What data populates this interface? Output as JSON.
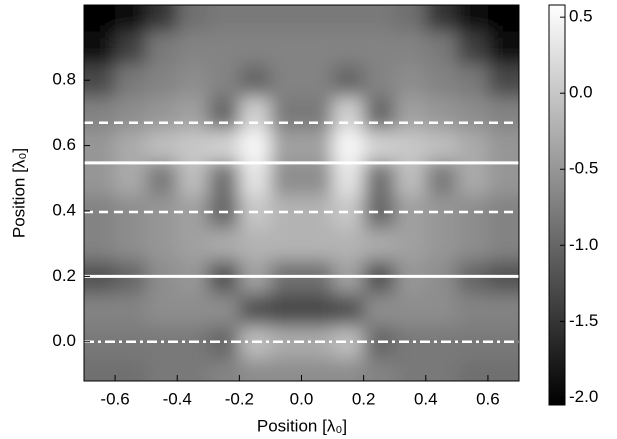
{
  "chart_data": {
    "type": "heatmap",
    "xlabel": "Position [λ₀]",
    "ylabel": "Position [λ₀]",
    "xlim": [
      -0.7,
      0.7
    ],
    "ylim": [
      -0.12,
      1.03
    ],
    "xticks": [
      -0.6,
      -0.4,
      -0.2,
      {
        "value": 0,
        "label": "0.0"
      },
      0.2,
      0.4,
      0.6
    ],
    "yticks": [
      {
        "value": 0,
        "label": "0.0"
      },
      0.2,
      0.4,
      0.6,
      0.8
    ],
    "clim": [
      -2.05,
      0.58
    ],
    "cticks": [
      0.5,
      {
        "value": 0,
        "label": "0.0"
      },
      -0.5,
      {
        "value": -1,
        "label": "-1.0"
      },
      -1.5,
      {
        "value": -2,
        "label": "-2.0"
      }
    ],
    "x": [
      -0.65,
      -0.55,
      -0.45,
      -0.35,
      -0.25,
      -0.15,
      -0.05,
      0.05,
      0.15,
      0.25,
      0.35,
      0.45,
      0.55,
      0.65
    ],
    "y": [
      -0.1,
      0.0,
      0.1,
      0.2,
      0.3,
      0.4,
      0.5,
      0.6,
      0.7,
      0.8,
      0.9,
      1.0
    ],
    "z": [
      [
        -0.9,
        -0.9,
        -0.8,
        -0.8,
        -0.7,
        -0.6,
        -0.6,
        -0.6,
        -0.6,
        -0.7,
        -0.8,
        -0.8,
        -0.9,
        -0.9
      ],
      [
        -0.8,
        -0.8,
        -0.8,
        -0.8,
        -1.0,
        -0.1,
        -0.3,
        -0.3,
        -0.1,
        -1.0,
        -0.8,
        -0.8,
        -0.8,
        -0.8
      ],
      [
        -0.7,
        -0.7,
        -0.6,
        -0.6,
        -0.6,
        -1.2,
        -1.3,
        -1.3,
        -1.2,
        -0.6,
        -0.6,
        -0.6,
        -0.7,
        -0.7
      ],
      [
        -1.2,
        -1.0,
        -0.6,
        -0.5,
        -1.2,
        -0.4,
        -0.9,
        -0.9,
        -0.4,
        -1.2,
        -0.5,
        -0.6,
        -1.0,
        -1.2
      ],
      [
        -0.7,
        -0.6,
        -0.5,
        -0.4,
        -0.3,
        -0.2,
        -0.2,
        -0.2,
        -0.2,
        -0.3,
        -0.4,
        -0.5,
        -0.6,
        -0.7
      ],
      [
        -0.7,
        -0.6,
        -0.5,
        -0.4,
        -1.0,
        0.0,
        -0.2,
        -0.2,
        0.0,
        -1.0,
        -0.4,
        -0.5,
        -0.6,
        -0.7
      ],
      [
        -0.5,
        -0.3,
        -0.8,
        -0.1,
        -0.9,
        0.3,
        -0.6,
        -0.6,
        0.3,
        -0.9,
        -0.1,
        -0.8,
        -0.3,
        -0.5
      ],
      [
        -0.5,
        -0.3,
        -0.1,
        0.0,
        0.1,
        0.5,
        -0.4,
        -0.4,
        0.5,
        0.1,
        0.0,
        -0.1,
        -0.3,
        -0.5
      ],
      [
        -0.7,
        -0.6,
        -0.5,
        -0.4,
        -1.0,
        0.1,
        -0.8,
        -0.8,
        0.1,
        -1.0,
        -0.4,
        -0.5,
        -0.6,
        -0.7
      ],
      [
        -1.3,
        -0.8,
        -0.7,
        -0.6,
        -0.7,
        -1.0,
        -0.7,
        -0.7,
        -1.0,
        -0.7,
        -0.6,
        -0.7,
        -0.8,
        -1.3
      ],
      [
        -1.9,
        -1.4,
        -0.8,
        -0.7,
        -0.7,
        -0.7,
        -0.7,
        -0.7,
        -0.7,
        -0.7,
        -0.7,
        -0.8,
        -1.4,
        -1.9
      ],
      [
        -2.0,
        -1.9,
        -1.5,
        -0.9,
        -0.8,
        -0.8,
        -0.8,
        -0.8,
        -0.8,
        -0.8,
        -0.9,
        -1.5,
        -1.9,
        -2.0
      ]
    ],
    "lines": [
      {
        "y": 0.67,
        "style": "dashed",
        "color": "#ffffff"
      },
      {
        "y": 0.547,
        "style": "solid",
        "color": "#ffffff"
      },
      {
        "y": 0.397,
        "style": "dashed",
        "color": "#ffffff"
      },
      {
        "y": 0.2,
        "style": "solid",
        "color": "#ffffff"
      },
      {
        "y": 0.0,
        "style": "dashdot",
        "color": "#ffffff"
      }
    ]
  }
}
